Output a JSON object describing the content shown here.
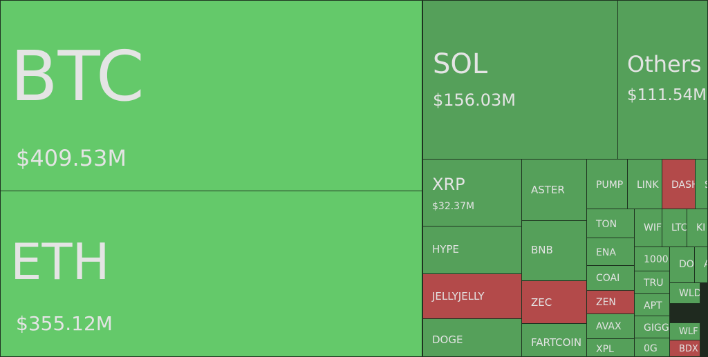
{
  "tiles": [
    {
      "label": "BTC",
      "value": "$409.53M"
    },
    {
      "label": "ETH",
      "value": "$355.12M"
    },
    {
      "label": "SOL",
      "value": "$156.03M"
    },
    {
      "label": "Others",
      "value": "$111.54M"
    },
    {
      "label": "XRP",
      "value": "$32.37M"
    },
    {
      "label": "ASTER"
    },
    {
      "label": "PUMP"
    },
    {
      "label": "LINK"
    },
    {
      "label": "DASH"
    },
    {
      "label": "S"
    },
    {
      "label": "HYPE"
    },
    {
      "label": "BNB"
    },
    {
      "label": "TON"
    },
    {
      "label": "WIF"
    },
    {
      "label": "LTC"
    },
    {
      "label": "KI"
    },
    {
      "label": "ENA"
    },
    {
      "label": "1000"
    },
    {
      "label": "DO"
    },
    {
      "label": "A"
    },
    {
      "label": "COAI"
    },
    {
      "label": "TRU"
    },
    {
      "label": "JELLYJELLY"
    },
    {
      "label": "ZEC"
    },
    {
      "label": "ZEN"
    },
    {
      "label": "APT"
    },
    {
      "label": "WLD"
    },
    {
      "label": "AVAX"
    },
    {
      "label": "GIGG"
    },
    {
      "label": "WLF"
    },
    {
      "label": "DOGE"
    },
    {
      "label": "FARTCOIN"
    },
    {
      "label": "XPL"
    },
    {
      "label": "0G"
    },
    {
      "label": "BDX"
    }
  ]
}
